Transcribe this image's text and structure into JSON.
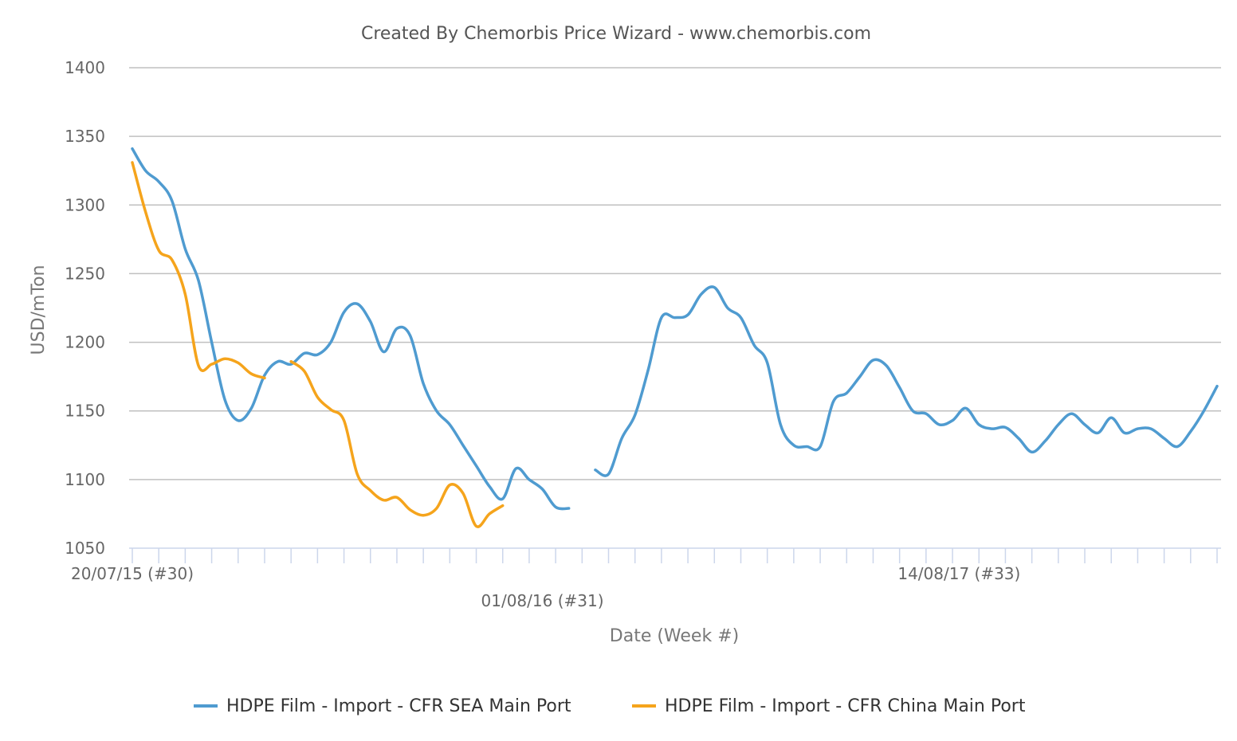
{
  "chart_data": {
    "type": "line",
    "title": "Created By Chemorbis Price Wizard - www.chemorbis.com",
    "xlabel": "Date (Week #)",
    "ylabel": "USD/mTon",
    "ylim": [
      1050,
      1400
    ],
    "yticks": [
      1050,
      1100,
      1150,
      1200,
      1250,
      1300,
      1350,
      1400
    ],
    "x_tick_labels": [
      "20/07/15 (#30)",
      "01/08/16 (#31)",
      "14/08/17 (#33)"
    ],
    "x_tick_label_index": [
      0,
      62,
      125
    ],
    "x_count": 165,
    "grid": true,
    "legend": "bottom",
    "series": [
      {
        "name": "HDPE Film - Import - CFR SEA Main Port",
        "color": "#4f9bd0",
        "values": [
          [
            0,
            1341
          ],
          [
            2,
            1325
          ],
          [
            4,
            1317
          ],
          [
            6,
            1303
          ],
          [
            8,
            1268
          ],
          [
            10,
            1245
          ],
          [
            12,
            1200
          ],
          [
            14,
            1158
          ],
          [
            16,
            1143
          ],
          [
            18,
            1152
          ],
          [
            20,
            1176
          ],
          [
            22,
            1186
          ],
          [
            24,
            1184
          ],
          [
            26,
            1192
          ],
          [
            28,
            1191
          ],
          [
            30,
            1200
          ],
          [
            32,
            1222
          ],
          [
            34,
            1228
          ],
          [
            36,
            1215
          ],
          [
            38,
            1193
          ],
          [
            40,
            1210
          ],
          [
            42,
            1205
          ],
          [
            44,
            1170
          ],
          [
            46,
            1150
          ],
          [
            48,
            1140
          ],
          [
            50,
            1125
          ],
          [
            52,
            1110
          ],
          [
            54,
            1095
          ],
          [
            56,
            1086
          ],
          [
            58,
            1108
          ],
          [
            60,
            1100
          ],
          [
            62,
            1093
          ],
          [
            64,
            1080
          ],
          [
            66,
            1079
          ],
          [
            null,
            null
          ],
          [
            70,
            1107
          ],
          [
            72,
            1104
          ],
          [
            74,
            1130
          ],
          [
            76,
            1147
          ],
          [
            78,
            1180
          ],
          [
            80,
            1218
          ],
          [
            82,
            1218
          ],
          [
            84,
            1220
          ],
          [
            86,
            1235
          ],
          [
            88,
            1240
          ],
          [
            90,
            1225
          ],
          [
            92,
            1218
          ],
          [
            94,
            1198
          ],
          [
            96,
            1185
          ],
          [
            98,
            1140
          ],
          [
            100,
            1125
          ],
          [
            102,
            1124
          ],
          [
            104,
            1124
          ],
          [
            106,
            1157
          ],
          [
            108,
            1163
          ],
          [
            110,
            1175
          ],
          [
            112,
            1187
          ],
          [
            114,
            1183
          ],
          [
            116,
            1167
          ],
          [
            118,
            1150
          ],
          [
            120,
            1148
          ],
          [
            122,
            1140
          ],
          [
            124,
            1143
          ],
          [
            126,
            1152
          ],
          [
            128,
            1140
          ],
          [
            130,
            1137
          ],
          [
            132,
            1138
          ],
          [
            134,
            1130
          ],
          [
            136,
            1120
          ],
          [
            138,
            1128
          ],
          [
            140,
            1140
          ],
          [
            142,
            1148
          ],
          [
            144,
            1140
          ],
          [
            146,
            1134
          ],
          [
            148,
            1145
          ],
          [
            150,
            1134
          ],
          [
            152,
            1137
          ],
          [
            154,
            1137
          ],
          [
            156,
            1130
          ],
          [
            158,
            1124
          ],
          [
            160,
            1135
          ],
          [
            162,
            1150
          ],
          [
            164,
            1168
          ]
        ]
      },
      {
        "name": "HDPE Film - Import - CFR China Main Port",
        "color": "#f5a41c",
        "values": [
          [
            0,
            1331
          ],
          [
            2,
            1295
          ],
          [
            4,
            1267
          ],
          [
            6,
            1260
          ],
          [
            8,
            1235
          ],
          [
            10,
            1183
          ],
          [
            12,
            1184
          ],
          [
            14,
            1188
          ],
          [
            16,
            1185
          ],
          [
            18,
            1177
          ],
          [
            20,
            1174
          ],
          [
            null,
            null
          ],
          [
            24,
            1186
          ],
          [
            26,
            1179
          ],
          [
            28,
            1160
          ],
          [
            30,
            1151
          ],
          [
            32,
            1143
          ],
          [
            34,
            1104
          ],
          [
            36,
            1092
          ],
          [
            38,
            1085
          ],
          [
            40,
            1087
          ],
          [
            42,
            1078
          ],
          [
            44,
            1074
          ],
          [
            46,
            1079
          ],
          [
            48,
            1096
          ],
          [
            50,
            1090
          ],
          [
            52,
            1066
          ],
          [
            54,
            1075
          ],
          [
            56,
            1081
          ]
        ]
      }
    ]
  }
}
